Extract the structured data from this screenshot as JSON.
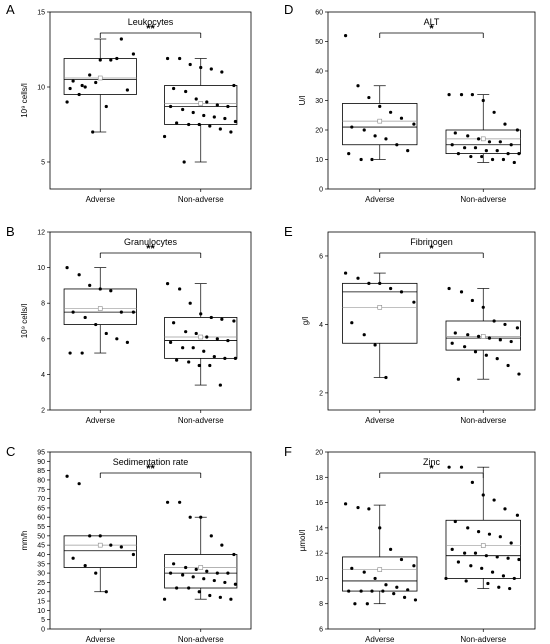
{
  "chart_data": [
    {
      "type": "box",
      "panel": "A",
      "title": "Leukocytes",
      "ylabel": "10⁹ cells/l",
      "categories": [
        "Adverse",
        "Non-adverse"
      ],
      "ylim": [
        3.2,
        15
      ],
      "yticks": [
        5,
        10,
        15
      ],
      "ytick_labels": [
        "5",
        "10",
        "15"
      ],
      "boxes": [
        {
          "whisker_low": 7.0,
          "q1": 9.5,
          "median": 10.5,
          "mean": 10.6,
          "q3": 11.9,
          "whisker_high": 13.2
        },
        {
          "whisker_low": 5.0,
          "q1": 7.5,
          "median": 8.7,
          "mean": 8.9,
          "q3": 10.1,
          "whisker_high": 11.9
        }
      ],
      "points": [
        [
          9.0,
          9.5,
          10.8,
          11.8,
          11.8,
          13.2,
          12.2,
          10.4,
          10.0,
          10.3,
          8.7,
          11.9,
          9.8,
          9.9,
          10.1,
          7.0
        ],
        [
          11.9,
          11.9,
          11.5,
          11.3,
          11.2,
          11.0,
          10.1,
          9.9,
          9.7,
          9.2,
          9.0,
          8.8,
          8.7,
          8.7,
          8.5,
          8.3,
          8.1,
          8.0,
          7.9,
          7.7,
          7.6,
          7.5,
          7.5,
          7.4,
          7.2,
          7.0,
          6.7,
          5.0
        ]
      ],
      "significance": "**"
    },
    {
      "type": "box",
      "panel": "D",
      "title": "ALT",
      "ylabel": "U/l",
      "categories": [
        "Adverse",
        "Non-adverse"
      ],
      "ylim": [
        0,
        60
      ],
      "yticks": [
        0,
        10,
        20,
        30,
        40,
        50,
        60
      ],
      "ytick_labels": [
        "0",
        "10",
        "20",
        "30",
        "40",
        "50",
        "60"
      ],
      "boxes": [
        {
          "whisker_low": 10,
          "q1": 15,
          "median": 21,
          "mean": 23,
          "q3": 29,
          "whisker_high": 35
        },
        {
          "whisker_low": 9,
          "q1": 12,
          "median": 15,
          "mean": 17,
          "q3": 20,
          "whisker_high": 32
        }
      ],
      "points": [
        [
          52,
          35,
          31,
          28,
          26,
          24,
          22,
          21,
          20,
          18,
          17,
          15,
          13,
          12,
          10,
          10
        ],
        [
          32,
          32,
          32,
          30,
          26,
          22,
          20,
          19,
          18,
          17,
          16,
          16,
          15,
          15,
          14,
          14,
          13,
          13,
          12,
          12,
          12,
          11,
          11,
          10,
          10,
          9
        ]
      ],
      "significance": "*"
    },
    {
      "type": "box",
      "panel": "B",
      "title": "Granulocytes",
      "ylabel": "10⁹ cells/l",
      "categories": [
        "Adverse",
        "Non-adverse"
      ],
      "ylim": [
        2,
        12
      ],
      "yticks": [
        2,
        4,
        6,
        8,
        10,
        12
      ],
      "ytick_labels": [
        "2",
        "4",
        "6",
        "8",
        "10",
        "12"
      ],
      "boxes": [
        {
          "whisker_low": 5.2,
          "q1": 6.8,
          "median": 7.5,
          "mean": 7.7,
          "q3": 8.8,
          "whisker_high": 10.0
        },
        {
          "whisker_low": 3.4,
          "q1": 4.9,
          "median": 5.9,
          "mean": 6.1,
          "q3": 7.2,
          "whisker_high": 9.1
        }
      ],
      "points": [
        [
          10.0,
          9.6,
          9.0,
          8.8,
          8.7,
          7.5,
          7.5,
          7.5,
          7.2,
          6.8,
          6.3,
          6.0,
          5.8,
          5.2,
          5.2
        ],
        [
          9.1,
          8.8,
          8.0,
          7.4,
          7.2,
          7.1,
          7.0,
          6.9,
          6.4,
          6.3,
          6.1,
          6.0,
          5.9,
          5.8,
          5.5,
          5.5,
          5.3,
          5.0,
          4.9,
          4.9,
          4.8,
          4.7,
          4.5,
          4.5,
          3.4
        ]
      ],
      "significance": "**"
    },
    {
      "type": "box",
      "panel": "E",
      "title": "Fibrinogen",
      "ylabel": "g/l",
      "categories": [
        "Adverse",
        "Non-adverse"
      ],
      "ylim": [
        1.5,
        6.7
      ],
      "yticks": [
        2,
        4,
        6
      ],
      "ytick_labels": [
        "2",
        "4",
        "6"
      ],
      "boxes": [
        {
          "whisker_low": 2.45,
          "q1": 3.45,
          "median": 4.95,
          "mean": 4.5,
          "q3": 5.2,
          "whisker_high": 5.5
        },
        {
          "whisker_low": 2.4,
          "q1": 3.25,
          "median": 3.6,
          "mean": 3.65,
          "q3": 4.1,
          "whisker_high": 5.05
        }
      ],
      "points": [
        [
          5.5,
          5.35,
          5.2,
          5.2,
          5.05,
          4.95,
          4.65,
          4.05,
          3.7,
          3.4,
          2.45
        ],
        [
          5.05,
          4.95,
          4.7,
          4.5,
          4.1,
          4.0,
          3.9,
          3.75,
          3.7,
          3.65,
          3.6,
          3.55,
          3.5,
          3.45,
          3.35,
          3.2,
          3.1,
          3.0,
          2.8,
          2.55,
          2.4
        ]
      ],
      "significance": "*"
    },
    {
      "type": "box",
      "panel": "C",
      "title": "Sedimentation rate",
      "ylabel": "mm/h",
      "categories": [
        "Adverse",
        "Non-adverse"
      ],
      "ylim": [
        0,
        95
      ],
      "yticks": [
        0,
        5,
        10,
        15,
        20,
        25,
        30,
        35,
        40,
        45,
        50,
        55,
        60,
        65,
        70,
        75,
        80,
        85,
        90,
        95
      ],
      "ytick_labels": [
        "0",
        "5",
        "10",
        "15",
        "20",
        "25",
        "30",
        "35",
        "40",
        "45",
        "50",
        "55",
        "60",
        "65",
        "70",
        "75",
        "80",
        "85",
        "90",
        "95"
      ],
      "boxes": [
        {
          "whisker_low": 20,
          "q1": 33,
          "median": 42,
          "mean": 45,
          "q3": 50,
          "whisker_high": 50
        },
        {
          "whisker_low": 16,
          "q1": 22,
          "median": 30,
          "mean": 33,
          "q3": 40,
          "whisker_high": 60
        }
      ],
      "points": [
        [
          82,
          78,
          50,
          50,
          45,
          44,
          40,
          38,
          34,
          30,
          20
        ],
        [
          68,
          68,
          60,
          60,
          50,
          45,
          40,
          35,
          33,
          32,
          31,
          30,
          30,
          30,
          29,
          28,
          27,
          26,
          25,
          24,
          22,
          22,
          20,
          18,
          17,
          16,
          16
        ]
      ],
      "significance": "**"
    },
    {
      "type": "box",
      "panel": "F",
      "title": "Zinc",
      "ylabel": "µmol/l",
      "categories": [
        "Adverse",
        "Non-adverse"
      ],
      "ylim": [
        6,
        20
      ],
      "yticks": [
        6,
        8,
        10,
        12,
        14,
        16,
        18,
        20
      ],
      "ytick_labels": [
        "6",
        "8",
        "10",
        "12",
        "14",
        "16",
        "18",
        "20"
      ],
      "boxes": [
        {
          "whisker_low": 8.0,
          "q1": 9.0,
          "median": 9.8,
          "mean": 10.7,
          "q3": 11.7,
          "whisker_high": 15.8
        },
        {
          "whisker_low": 9.2,
          "q1": 10.0,
          "median": 11.8,
          "mean": 12.6,
          "q3": 14.6,
          "whisker_high": 18.8
        }
      ],
      "points": [
        [
          15.9,
          15.6,
          15.5,
          14.0,
          12.3,
          11.5,
          11.0,
          10.8,
          10.5,
          10.0,
          9.5,
          9.3,
          9.1,
          9.0,
          9.0,
          9.0,
          9.0,
          8.8,
          8.5,
          8.3,
          8.0,
          8.0
        ],
        [
          18.8,
          18.8,
          17.6,
          16.6,
          16.2,
          15.5,
          15.0,
          14.5,
          14.0,
          13.7,
          13.5,
          13.3,
          12.8,
          12.3,
          12.0,
          12.0,
          11.8,
          11.7,
          11.6,
          11.5,
          11.3,
          11.0,
          10.8,
          10.5,
          10.2,
          10.0,
          10.0,
          9.8,
          9.6,
          9.3,
          9.2
        ]
      ],
      "significance": "*"
    }
  ]
}
